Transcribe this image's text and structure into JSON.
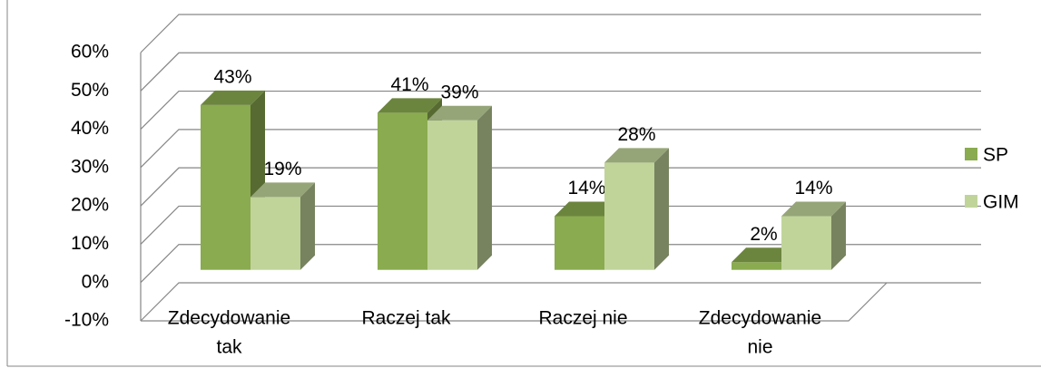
{
  "chart_data": {
    "type": "bar3d",
    "categories": [
      [
        "Zdecydowanie",
        "tak"
      ],
      [
        "Raczej tak"
      ],
      [
        "Raczej nie"
      ],
      [
        "Zdecydowanie",
        "nie"
      ]
    ],
    "series": [
      {
        "name": "SP",
        "color": "#8aab4f",
        "values": [
          43,
          41,
          14,
          2
        ],
        "value_labels": [
          "43%",
          "41%",
          "14%",
          "2%"
        ]
      },
      {
        "name": "GIM",
        "color": "#c0d49a",
        "values": [
          19,
          39,
          28,
          14
        ],
        "value_labels": [
          "19%",
          "39%",
          "28%",
          "14%"
        ]
      }
    ],
    "ylim": [
      -10,
      60
    ],
    "yticks": [
      {
        "value": -10,
        "label": "-10%"
      },
      {
        "value": 0,
        "label": "0%"
      },
      {
        "value": 10,
        "label": "10%"
      },
      {
        "value": 20,
        "label": "20%"
      },
      {
        "value": 30,
        "label": "30%"
      },
      {
        "value": 40,
        "label": "40%"
      },
      {
        "value": 50,
        "label": "50%"
      },
      {
        "value": 60,
        "label": "60%"
      }
    ],
    "grid": true,
    "legend": "right"
  }
}
